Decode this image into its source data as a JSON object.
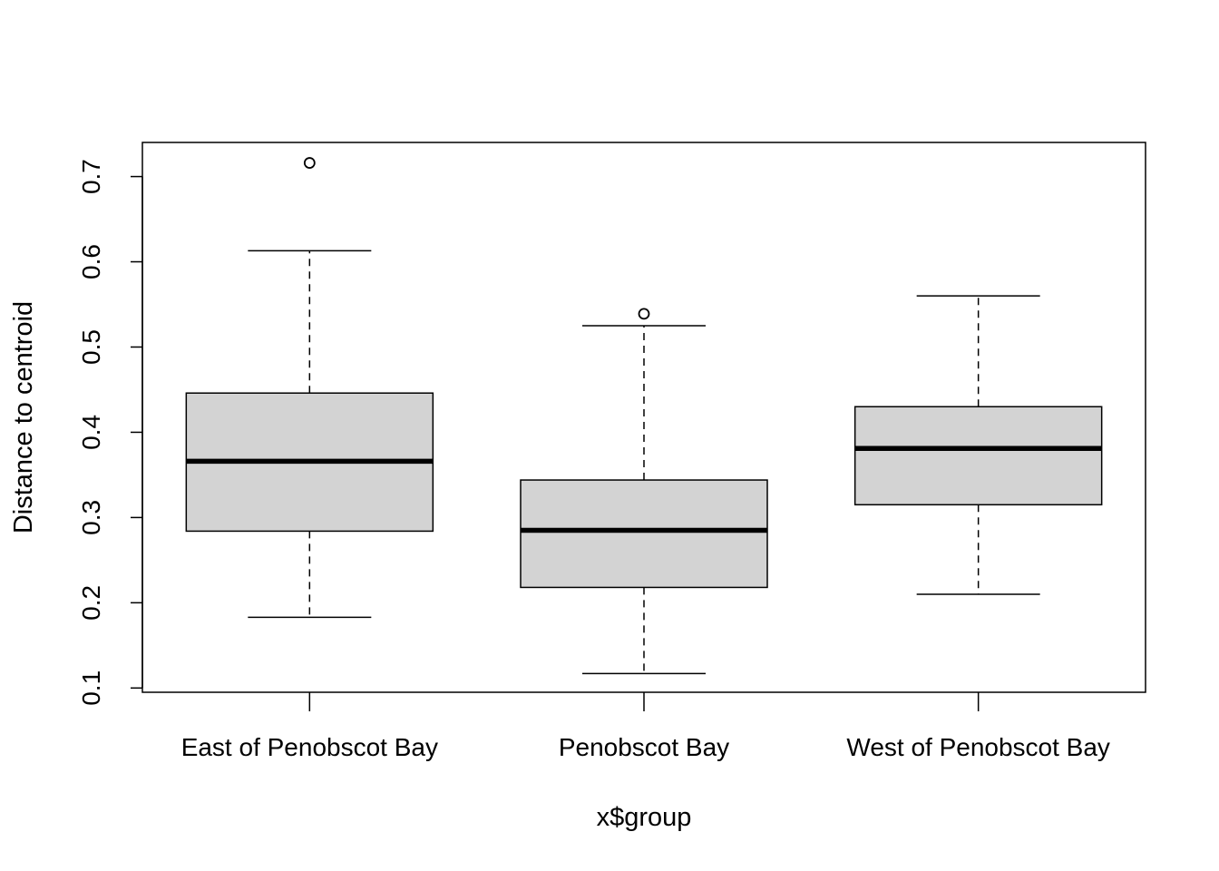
{
  "chart_data": {
    "type": "boxplot",
    "xlabel": "x$group",
    "ylabel": "Distance to centroid",
    "ylim": [
      0.095,
      0.74
    ],
    "yticks": [
      0.1,
      0.2,
      0.3,
      0.4,
      0.5,
      0.6,
      0.7
    ],
    "ytick_labels": [
      "0.1",
      "0.2",
      "0.3",
      "0.4",
      "0.5",
      "0.6",
      "0.7"
    ],
    "grid": false,
    "categories": [
      "East of Penobscot Bay",
      "Penobscot Bay",
      "West of Penobscot Bay"
    ],
    "boxes": [
      {
        "category": "East of Penobscot Bay",
        "whisker_low": 0.183,
        "q1": 0.284,
        "median": 0.366,
        "q3": 0.446,
        "whisker_high": 0.613,
        "outliers": [
          0.716
        ]
      },
      {
        "category": "Penobscot Bay",
        "whisker_low": 0.117,
        "q1": 0.218,
        "median": 0.285,
        "q3": 0.344,
        "whisker_high": 0.525,
        "outliers": [
          0.539
        ]
      },
      {
        "category": "West of Penobscot Bay",
        "whisker_low": 0.21,
        "q1": 0.315,
        "median": 0.381,
        "q3": 0.43,
        "whisker_high": 0.56,
        "outliers": []
      }
    ],
    "colors": {
      "box_fill": "#d3d3d3",
      "stroke": "#000000",
      "background": "#ffffff"
    }
  }
}
